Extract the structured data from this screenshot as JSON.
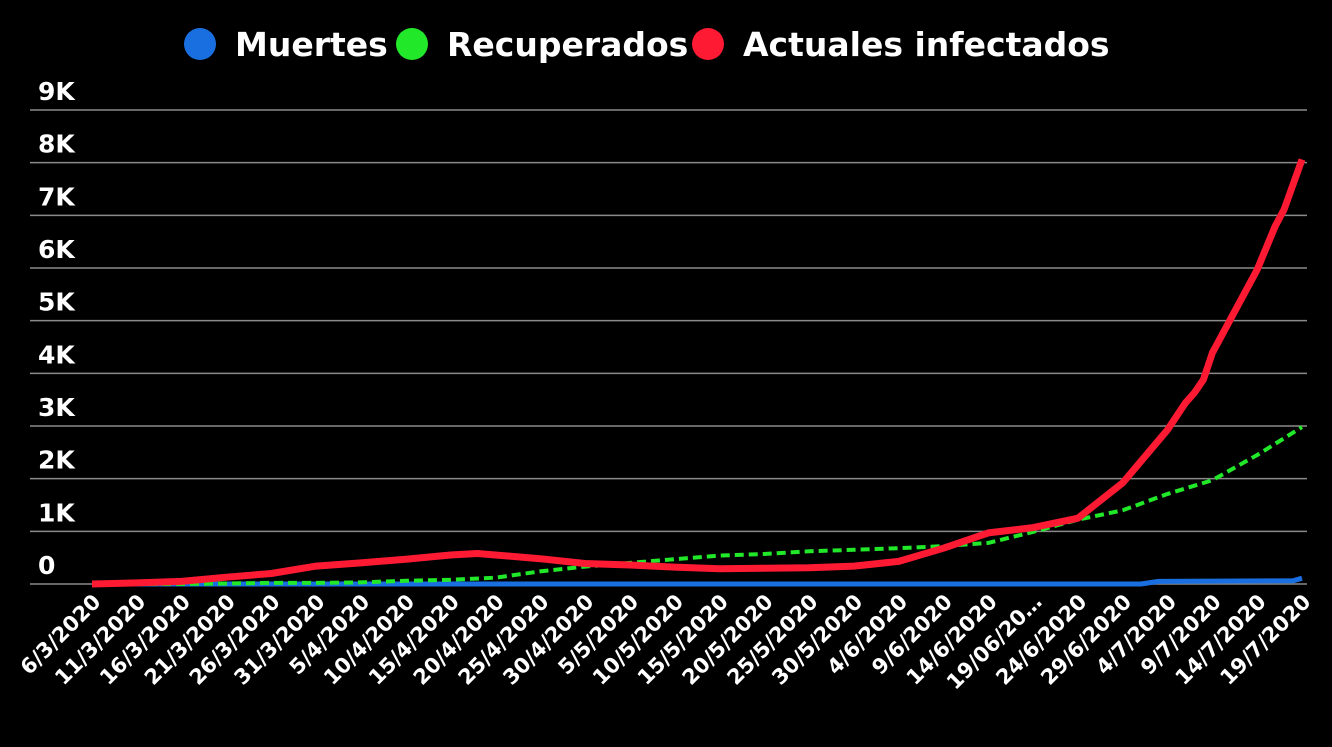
{
  "chart_data": {
    "type": "line",
    "title": "",
    "xlabel": "",
    "ylabel": "",
    "ylim": [
      0,
      9000
    ],
    "grid": true,
    "legend_position": "top",
    "y_tick_labels": [
      "0",
      "1K",
      "2K",
      "3K",
      "4K",
      "5K",
      "6K",
      "7K",
      "8K",
      "9K"
    ],
    "y_tick_values": [
      0,
      1000,
      2000,
      3000,
      4000,
      5000,
      6000,
      7000,
      8000,
      9000
    ],
    "x_tick_labels": [
      "6/3/2020",
      "11/3/2020",
      "16/3/2020",
      "21/3/2020",
      "26/3/2020",
      "31/3/2020",
      "5/4/2020",
      "10/4/2020",
      "15/4/2020",
      "20/4/2020",
      "25/4/2020",
      "30/4/2020",
      "5/5/2020",
      "10/5/2020",
      "15/5/2020",
      "20/5/2020",
      "25/5/2020",
      "30/5/2020",
      "4/6/2020",
      "9/6/2020",
      "14/6/2020",
      "19/06/20…",
      "24/6/2020",
      "29/6/2020",
      "4/7/2020",
      "9/7/2020",
      "14/7/2020",
      "19/7/2020"
    ],
    "x_range": [
      "6/3/2020",
      "19/7/2020"
    ],
    "series": [
      {
        "name": "Muertes",
        "color": "#1a6fe0",
        "style": "solid",
        "points": [
          [
            "6/3/2020",
            0
          ],
          [
            "1/7/2020",
            0
          ],
          [
            "3/7/2020",
            50
          ],
          [
            "18/7/2020",
            60
          ],
          [
            "19/7/2020",
            110
          ]
        ]
      },
      {
        "name": "Recuperados",
        "color": "#22e82a",
        "style": "dashed",
        "points": [
          [
            "6/3/2020",
            0
          ],
          [
            "16/3/2020",
            0
          ],
          [
            "21/3/2020",
            10
          ],
          [
            "26/3/2020",
            20
          ],
          [
            "31/3/2020",
            20
          ],
          [
            "5/4/2020",
            30
          ],
          [
            "10/4/2020",
            60
          ],
          [
            "15/4/2020",
            80
          ],
          [
            "20/4/2020",
            120
          ],
          [
            "25/4/2020",
            240
          ],
          [
            "30/4/2020",
            330
          ],
          [
            "5/5/2020",
            400
          ],
          [
            "10/5/2020",
            470
          ],
          [
            "15/5/2020",
            540
          ],
          [
            "20/5/2020",
            570
          ],
          [
            "25/5/2020",
            620
          ],
          [
            "30/5/2020",
            650
          ],
          [
            "4/6/2020",
            680
          ],
          [
            "9/6/2020",
            720
          ],
          [
            "14/6/2020",
            780
          ],
          [
            "19/6/2020",
            990
          ],
          [
            "24/6/2020",
            1220
          ],
          [
            "29/6/2020",
            1400
          ],
          [
            "4/7/2020",
            1710
          ],
          [
            "9/7/2020",
            1970
          ],
          [
            "14/7/2020",
            2450
          ],
          [
            "19/7/2020",
            2980
          ]
        ]
      },
      {
        "name": "Actuales infectados",
        "color": "#ff1a33",
        "style": "solid",
        "points": [
          [
            "6/3/2020",
            0
          ],
          [
            "11/3/2020",
            20
          ],
          [
            "16/3/2020",
            50
          ],
          [
            "21/3/2020",
            130
          ],
          [
            "26/3/2020",
            200
          ],
          [
            "31/3/2020",
            340
          ],
          [
            "5/4/2020",
            400
          ],
          [
            "10/4/2020",
            470
          ],
          [
            "15/4/2020",
            550
          ],
          [
            "18/4/2020",
            580
          ],
          [
            "20/4/2020",
            550
          ],
          [
            "25/4/2020",
            480
          ],
          [
            "30/4/2020",
            390
          ],
          [
            "5/5/2020",
            360
          ],
          [
            "10/5/2020",
            320
          ],
          [
            "15/5/2020",
            290
          ],
          [
            "20/5/2020",
            300
          ],
          [
            "25/5/2020",
            310
          ],
          [
            "30/5/2020",
            340
          ],
          [
            "4/6/2020",
            430
          ],
          [
            "9/6/2020",
            680
          ],
          [
            "14/6/2020",
            970
          ],
          [
            "19/6/2020",
            1070
          ],
          [
            "24/6/2020",
            1250
          ],
          [
            "29/6/2020",
            1920
          ],
          [
            "4/7/2020",
            2930
          ],
          [
            "6/7/2020",
            3440
          ],
          [
            "7/7/2020",
            3630
          ],
          [
            "8/7/2020",
            3880
          ],
          [
            "9/7/2020",
            4390
          ],
          [
            "14/7/2020",
            5970
          ],
          [
            "16/7/2020",
            6790
          ],
          [
            "17/7/2020",
            7110
          ],
          [
            "19/7/2020",
            8060
          ]
        ]
      }
    ]
  }
}
